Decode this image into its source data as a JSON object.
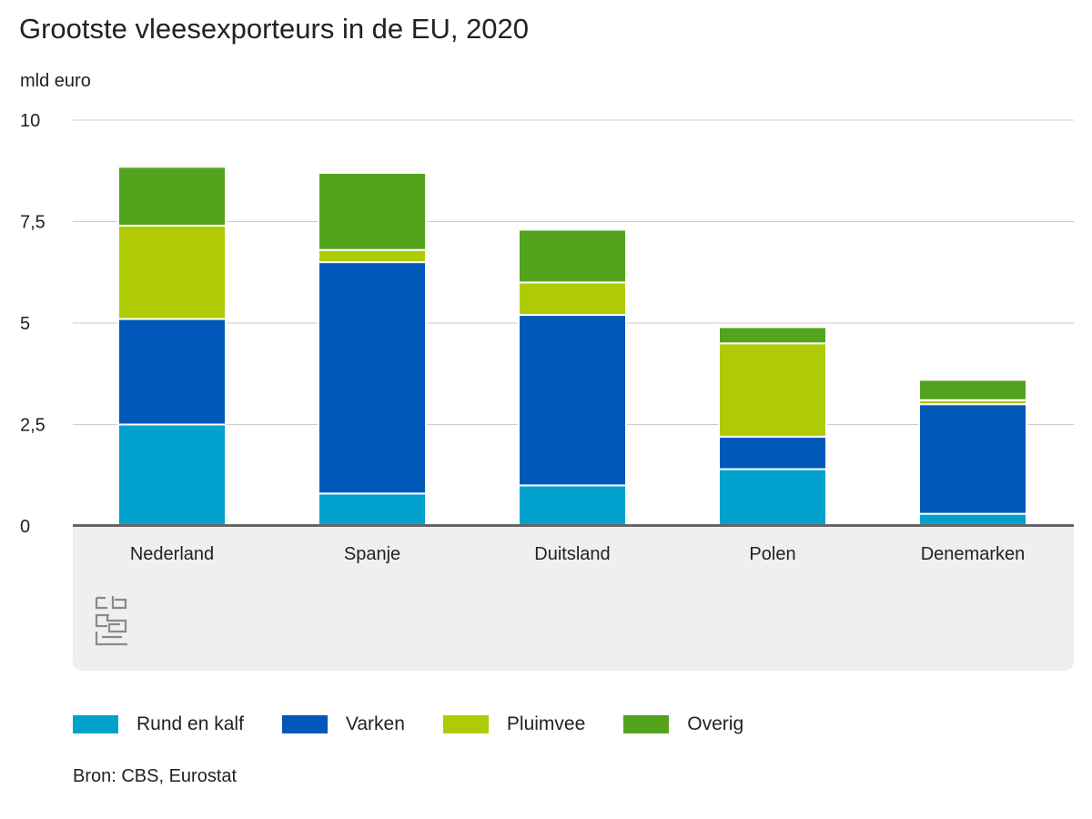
{
  "chart_data": {
    "type": "bar",
    "stacked": true,
    "title": "Grootste vleesexporteurs in de EU, 2020",
    "ylabel": "mld euro",
    "xlabel": "",
    "ylim": [
      0,
      10
    ],
    "y_ticks": [
      0,
      2.5,
      5,
      7.5,
      10
    ],
    "y_tick_labels": [
      "0",
      "2,5",
      "5",
      "7,5",
      "10"
    ],
    "grid": true,
    "legend_position": "bottom",
    "categories": [
      "Nederland",
      "Spanje",
      "Duitsland",
      "Polen",
      "Denemarken"
    ],
    "series": [
      {
        "name": "Rund en kalf",
        "color": "#00a1cd",
        "values": [
          2.5,
          0.8,
          1.0,
          1.4,
          0.3
        ]
      },
      {
        "name": "Varken",
        "color": "#0058b8",
        "values": [
          2.6,
          5.7,
          4.2,
          0.8,
          2.7
        ]
      },
      {
        "name": "Pluimvee",
        "color": "#afcb05",
        "values": [
          2.3,
          0.3,
          0.8,
          2.3,
          0.1
        ]
      },
      {
        "name": "Overig",
        "color": "#53a31d",
        "values": [
          1.45,
          1.9,
          1.3,
          0.4,
          0.5
        ]
      }
    ]
  },
  "source": "Bron: CBS, Eurostat",
  "logo": {
    "text": "cbs",
    "icon": "cbs-logo-icon"
  }
}
